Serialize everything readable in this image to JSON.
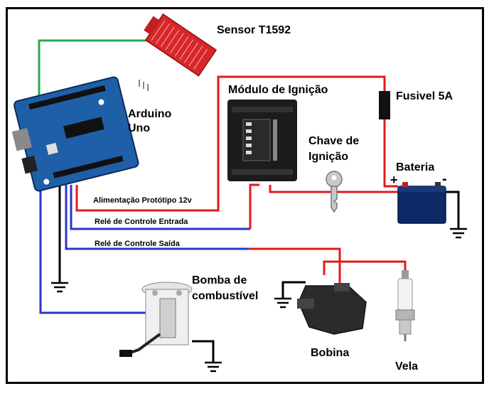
{
  "labels": {
    "sensor": "Sensor T1592",
    "arduino_line1": "Arduino",
    "arduino_line2": "Uno",
    "modulo": "Módulo de Ignição",
    "fusivel": "Fusivel 5A",
    "chave_line1": "Chave de",
    "chave_line2": "Ignição",
    "bateria": "Bateria",
    "plus": "+",
    "minus": "-",
    "alimentacao": "Alimentação Protótipo 12v",
    "rele_entrada": "Relé de Controle Entrada",
    "rele_saida": "Relé de Controle Saída",
    "bomba_line1": "Bomba de",
    "bomba_line2": "combustível",
    "bobina": "Bobina",
    "vela": "Vela"
  },
  "colors": {
    "red_wire": "#e01b1b",
    "blue_wire": "#2b36c9",
    "green_wire": "#2aa84a",
    "black_wire": "#000000",
    "arduino_board": "#1f5fa8",
    "sensor_board": "#d9262a",
    "module_body": "#1c1c1c",
    "battery_body": "#0d2a66"
  }
}
